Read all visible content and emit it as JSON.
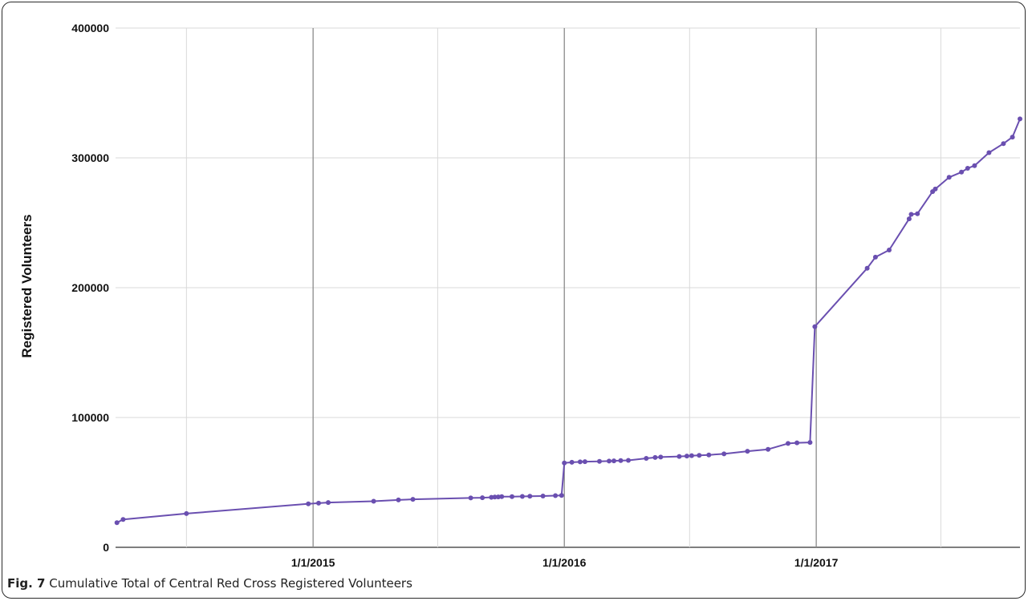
{
  "chart_data": {
    "type": "line",
    "title": "",
    "ylabel": "Registered Volunteers",
    "xlabel": "",
    "ylim": [
      0,
      400000
    ],
    "yticks": [
      0,
      100000,
      200000,
      300000,
      400000
    ],
    "ytick_labels": [
      "0",
      "100000",
      "200000",
      "300000",
      "400000"
    ],
    "xlim": [
      "2014-03-20",
      "2017-10-24"
    ],
    "xticks": [
      "2015-01-01",
      "2016-01-01",
      "2017-01-01"
    ],
    "xtick_labels": [
      "1/1/2015",
      "1/1/2016",
      "1/1/2017"
    ],
    "minor_xgrid": [
      "2014-07-01",
      "2015-07-01",
      "2016-07-01",
      "2017-07-01"
    ],
    "grid": true,
    "legend": "none",
    "color": "#6a4fb0",
    "points": [
      [
        "2014-03-22",
        19000
      ],
      [
        "2014-03-31",
        21500
      ],
      [
        "2014-07-01",
        26000
      ],
      [
        "2014-12-25",
        33500
      ],
      [
        "2015-01-09",
        34000
      ],
      [
        "2015-01-23",
        34500
      ],
      [
        "2015-03-30",
        35500
      ],
      [
        "2015-05-05",
        36500
      ],
      [
        "2015-05-26",
        37000
      ],
      [
        "2015-08-18",
        38000
      ],
      [
        "2015-09-04",
        38200
      ],
      [
        "2015-09-17",
        38500
      ],
      [
        "2015-09-22",
        38700
      ],
      [
        "2015-09-27",
        38800
      ],
      [
        "2015-10-02",
        39000
      ],
      [
        "2015-10-17",
        39000
      ],
      [
        "2015-11-01",
        39200
      ],
      [
        "2015-11-12",
        39300
      ],
      [
        "2015-12-01",
        39500
      ],
      [
        "2015-12-19",
        39800
      ],
      [
        "2015-12-28",
        40000
      ],
      [
        "2016-01-01",
        65000
      ],
      [
        "2016-01-12",
        65500
      ],
      [
        "2016-01-24",
        65800
      ],
      [
        "2016-01-31",
        66000
      ],
      [
        "2016-02-21",
        66200
      ],
      [
        "2016-03-06",
        66400
      ],
      [
        "2016-03-13",
        66600
      ],
      [
        "2016-03-23",
        66800
      ],
      [
        "2016-04-03",
        67000
      ],
      [
        "2016-04-29",
        68500
      ],
      [
        "2016-05-12",
        69200
      ],
      [
        "2016-05-20",
        69500
      ],
      [
        "2016-06-16",
        70000
      ],
      [
        "2016-06-27",
        70300
      ],
      [
        "2016-07-04",
        70600
      ],
      [
        "2016-07-15",
        70800
      ],
      [
        "2016-07-29",
        71200
      ],
      [
        "2016-08-20",
        72000
      ],
      [
        "2016-09-23",
        74000
      ],
      [
        "2016-10-23",
        75500
      ],
      [
        "2016-11-21",
        80000
      ],
      [
        "2016-12-04",
        80500
      ],
      [
        "2016-12-23",
        80800
      ],
      [
        "2016-12-30",
        170000
      ],
      [
        "2017-03-16",
        215000
      ],
      [
        "2017-03-28",
        223500
      ],
      [
        "2017-04-17",
        229000
      ],
      [
        "2017-05-16",
        253000
      ],
      [
        "2017-05-19",
        256500
      ],
      [
        "2017-05-28",
        257000
      ],
      [
        "2017-06-19",
        274000
      ],
      [
        "2017-06-23",
        276000
      ],
      [
        "2017-07-13",
        285000
      ],
      [
        "2017-07-31",
        289000
      ],
      [
        "2017-08-09",
        292000
      ],
      [
        "2017-08-19",
        294000
      ],
      [
        "2017-09-09",
        304000
      ],
      [
        "2017-09-30",
        311000
      ],
      [
        "2017-10-13",
        316000
      ],
      [
        "2017-10-24",
        330000
      ]
    ]
  },
  "caption": {
    "label": "Fig. 7",
    "text": " Cumulative Total of Central Red Cross Registered Volunteers"
  }
}
